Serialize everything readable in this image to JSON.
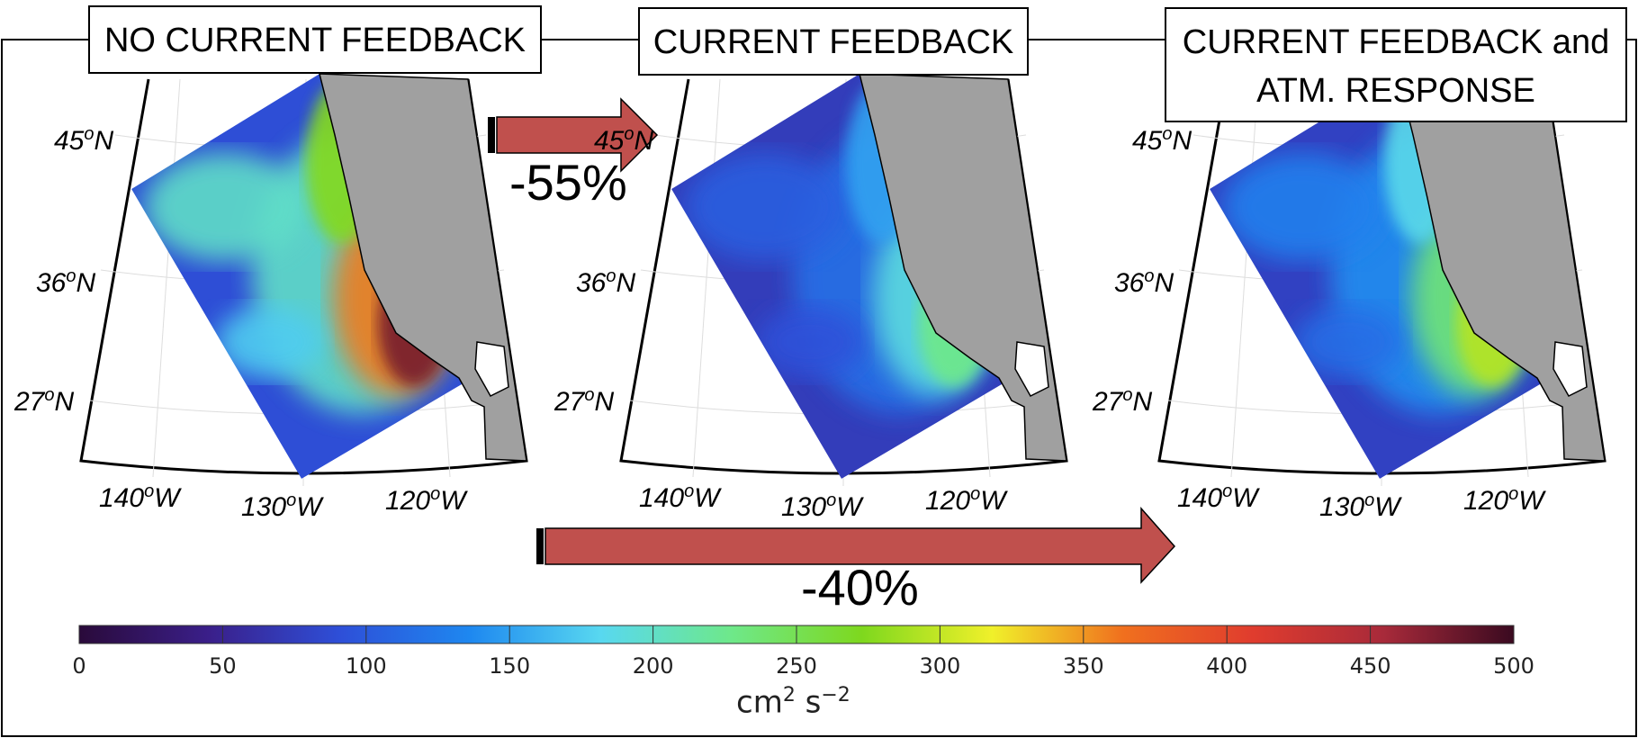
{
  "panels": [
    {
      "title_lines": [
        "NO CURRENT FEEDBACK"
      ],
      "level": 1.0
    },
    {
      "title_lines": [
        "CURRENT FEEDBACK"
      ],
      "level": 0.45
    },
    {
      "title_lines": [
        "CURRENT FEEDBACK and",
        "ATM. RESPONSE"
      ],
      "level": 0.6
    }
  ],
  "lat_labels": [
    "45",
    "36",
    "27"
  ],
  "lat_suffix": "N",
  "lon_labels": [
    "140",
    "130",
    "120"
  ],
  "lon_suffix": "W",
  "degree_symbol": "o",
  "arrows": {
    "short_label": "-55%",
    "long_label": "-40%",
    "color": "#c0504d"
  },
  "colorbar": {
    "ticks": [
      "0",
      "50",
      "100",
      "150",
      "200",
      "250",
      "300",
      "350",
      "400",
      "450",
      "500"
    ],
    "unit_base": "cm",
    "unit_exp1": "2",
    "unit_mid": " s",
    "unit_exp2": "−2",
    "colors": [
      "#2a0a3a",
      "#3a1f8a",
      "#2e4fd8",
      "#1e88f0",
      "#58d8f0",
      "#6ee88a",
      "#7ed81e",
      "#f0f02a",
      "#f0701e",
      "#e03c2e",
      "#a82a3a",
      "#3a0a20"
    ]
  },
  "land_color": "#a0a0a0"
}
